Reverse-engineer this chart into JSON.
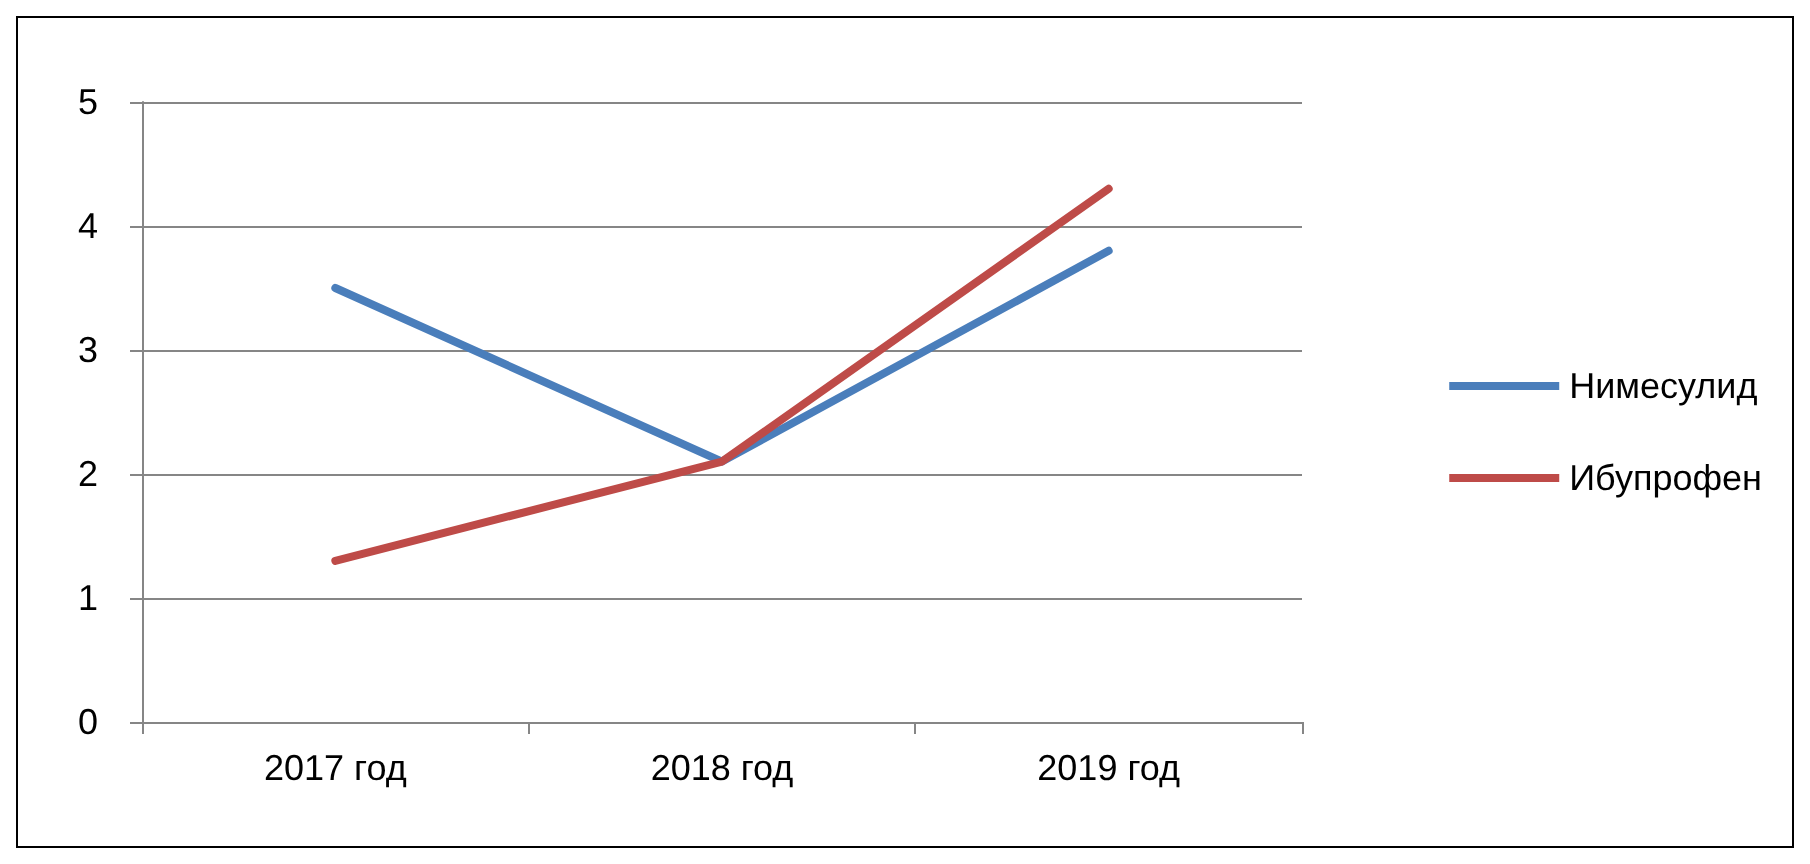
{
  "chart_data": {
    "type": "line",
    "categories": [
      "2017 год",
      "2018 год",
      "2019 год"
    ],
    "series": [
      {
        "name": "Нимесулид",
        "color": "#4a7ebb",
        "values": [
          3.5,
          2.1,
          3.8
        ]
      },
      {
        "name": "Ибупрофен",
        "color": "#be4b48",
        "values": [
          1.3,
          2.1,
          4.3
        ]
      }
    ],
    "ylim": [
      0,
      5
    ],
    "yticks": [
      0,
      1,
      2,
      3,
      4,
      5
    ],
    "grid": "y",
    "legend": "right",
    "marker": "none",
    "line_style": "solid"
  }
}
